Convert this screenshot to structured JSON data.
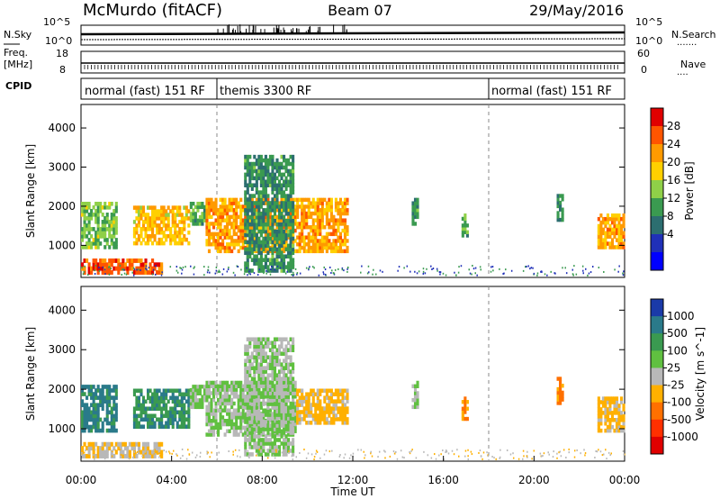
{
  "header": {
    "station": "McMurdo (fitACF)",
    "beam": "Beam 07",
    "date": "29/May/2016"
  },
  "sidebar_left": {
    "nsky": "N.Sky",
    "freq_line1": "Freq.",
    "freq_line2": "[MHz]",
    "cpid": "CPID"
  },
  "sidebar_right": {
    "nsearch": "N.Search",
    "nave": "Nave"
  },
  "noise_panel": {
    "left_ticks": [
      "10^5",
      "10^0"
    ],
    "right_ticks": [
      "10^5",
      "10^0"
    ]
  },
  "freq_panel": {
    "left_ticks": [
      "18",
      "8"
    ],
    "right_ticks": [
      "60",
      "0"
    ]
  },
  "cpid_segments": [
    {
      "label": "normal (fast) 151 RF",
      "start_hour": 0,
      "end_hour": 6
    },
    {
      "label": "themis 3300 RF",
      "start_hour": 6,
      "end_hour": 18
    },
    {
      "label": "normal (fast) 151 RF",
      "start_hour": 18,
      "end_hour": 24
    }
  ],
  "power_panel": {
    "ylabel": "Slant Range [km]",
    "colorbar_label": "Power [dB]",
    "colorbar_ticks": [
      "28",
      "24",
      "20",
      "16",
      "12",
      "8",
      "4"
    ],
    "colorbar_colors": [
      "#e00000",
      "#ff5500",
      "#ff9a00",
      "#ffd000",
      "#8fd048",
      "#3a9a50",
      "#2c6e70",
      "#2030b8",
      "#0000ff"
    ]
  },
  "velocity_panel": {
    "ylabel": "Slant Range [km]",
    "colorbar_label": "Velocity [m s^-1]",
    "colorbar_ticks": [
      "1000",
      "500",
      "100",
      "25",
      "-25",
      "-100",
      "-500",
      "-1000"
    ],
    "colorbar_colors": [
      "#1a3aa8",
      "#2a7a8a",
      "#3a9a50",
      "#60c040",
      "#b8b8b8",
      "#ffb000",
      "#ff7000",
      "#ff3000",
      "#e00000"
    ]
  },
  "xaxis": {
    "label": "Time UT",
    "ticks": [
      "00:00",
      "04:00",
      "08:00",
      "12:00",
      "16:00",
      "20:00",
      "00:00"
    ]
  },
  "chart_data": [
    {
      "type": "heatmap",
      "name": "power",
      "xlabel": "Time UT",
      "ylabel": "Slant Range [km]",
      "xlim": [
        0,
        24
      ],
      "ylim": [
        180,
        4600
      ],
      "yticks": [
        1000,
        2000,
        3000,
        4000
      ],
      "xticks": [
        "00:00",
        "04:00",
        "08:00",
        "12:00",
        "16:00",
        "20:00",
        "00:00"
      ],
      "colorbar": {
        "label": "Power [dB]",
        "range": [
          0,
          30
        ]
      },
      "regions": [
        {
          "t0": 0.0,
          "t1": 3.6,
          "r0": 250,
          "r1": 650,
          "level": 26
        },
        {
          "t0": 0.0,
          "t1": 1.6,
          "r0": 900,
          "r1": 2100,
          "level": 14
        },
        {
          "t0": 2.3,
          "t1": 4.8,
          "r0": 1000,
          "r1": 2000,
          "level": 20
        },
        {
          "t0": 4.8,
          "t1": 5.6,
          "r0": 1500,
          "r1": 2100,
          "level": 12
        },
        {
          "t0": 5.5,
          "t1": 11.8,
          "r0": 800,
          "r1": 2200,
          "level": 22
        },
        {
          "t0": 7.2,
          "t1": 9.4,
          "r0": 300,
          "r1": 3300,
          "level": 10
        },
        {
          "t0": 14.6,
          "t1": 14.9,
          "r0": 1500,
          "r1": 2200,
          "level": 10
        },
        {
          "t0": 16.8,
          "t1": 17.1,
          "r0": 1200,
          "r1": 1800,
          "level": 12
        },
        {
          "t0": 21.0,
          "t1": 21.3,
          "r0": 1600,
          "r1": 2300,
          "level": 10
        },
        {
          "t0": 22.8,
          "t1": 24.0,
          "r0": 900,
          "r1": 1800,
          "level": 22
        }
      ]
    },
    {
      "type": "heatmap",
      "name": "velocity",
      "xlabel": "Time UT",
      "ylabel": "Slant Range [km]",
      "xlim": [
        0,
        24
      ],
      "ylim": [
        180,
        4600
      ],
      "yticks": [
        1000,
        2000,
        3000,
        4000
      ],
      "xticks": [
        "00:00",
        "04:00",
        "08:00",
        "12:00",
        "16:00",
        "20:00",
        "00:00"
      ],
      "colorbar": {
        "label": "Velocity [m s^-1]",
        "range": [
          -1000,
          1000
        ]
      },
      "regions": [
        {
          "t0": 0.0,
          "t1": 3.6,
          "r0": 250,
          "r1": 650,
          "level": -100
        },
        {
          "t0": 0.0,
          "t1": 1.6,
          "r0": 900,
          "r1": 2100,
          "level": 700
        },
        {
          "t0": 2.3,
          "t1": 4.8,
          "r0": 1000,
          "r1": 2000,
          "level": 600
        },
        {
          "t0": 4.8,
          "t1": 5.6,
          "r0": 1500,
          "r1": 2100,
          "level": 200
        },
        {
          "t0": 5.5,
          "t1": 9.5,
          "r0": 800,
          "r1": 2200,
          "level": 150
        },
        {
          "t0": 9.5,
          "t1": 11.8,
          "r0": 1100,
          "r1": 2000,
          "level": -200
        },
        {
          "t0": 7.2,
          "t1": 9.4,
          "r0": 300,
          "r1": 3300,
          "level": 100
        },
        {
          "t0": 14.6,
          "t1": 14.9,
          "r0": 1500,
          "r1": 2200,
          "level": 100
        },
        {
          "t0": 16.8,
          "t1": 17.1,
          "r0": 1200,
          "r1": 1800,
          "level": -400
        },
        {
          "t0": 21.0,
          "t1": 21.3,
          "r0": 1600,
          "r1": 2300,
          "level": -400
        },
        {
          "t0": 22.8,
          "t1": 24.0,
          "r0": 900,
          "r1": 1800,
          "level": -200
        }
      ]
    }
  ]
}
